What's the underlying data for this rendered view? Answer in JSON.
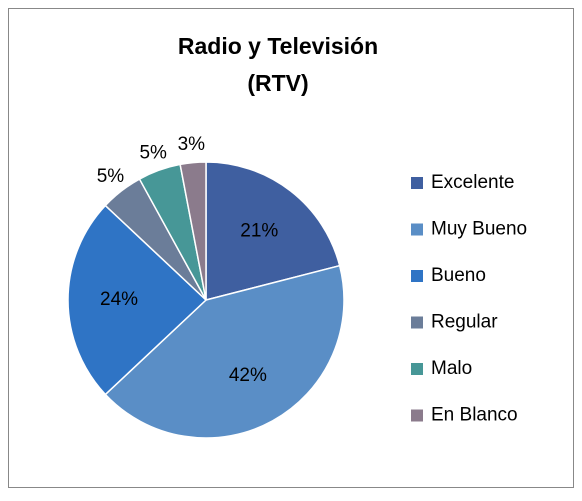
{
  "chart_data": {
    "type": "pie",
    "title": [
      "Radio y Televisión",
      "(RTV)"
    ],
    "categories": [
      "Excelente",
      "Muy Bueno",
      "Bueno",
      "Regular",
      "Malo",
      "En Blanco"
    ],
    "values": [
      21,
      42,
      24,
      5,
      5,
      3
    ],
    "value_labels": [
      "21%",
      "42%",
      "24%",
      "5%",
      "5%",
      "3%"
    ],
    "colors": [
      "#3f5fa0",
      "#5a8ec6",
      "#2f74c5",
      "#6b7d99",
      "#479797",
      "#8b7b8c"
    ],
    "legend": "right"
  }
}
